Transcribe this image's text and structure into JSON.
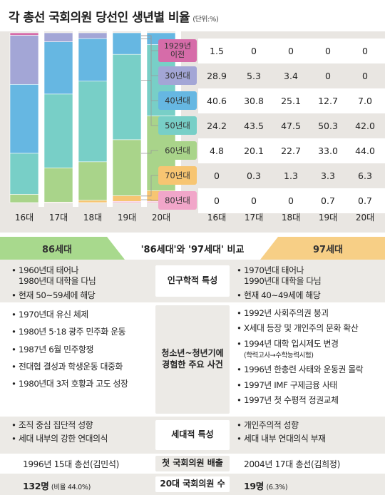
{
  "title": "각 총선 국회의원 당선인 생년별 비율",
  "unit": "(단위:%)",
  "chart_data": {
    "type": "bar",
    "stacked": true,
    "categories": [
      "16대",
      "17대",
      "18대",
      "19대",
      "20대"
    ],
    "series": [
      {
        "name": "1929년 이전",
        "values": [
          1.5,
          0,
          0,
          0,
          0
        ],
        "color": "#d66ca9"
      },
      {
        "name": "30년대",
        "values": [
          28.9,
          5.3,
          3.4,
          0,
          0
        ],
        "color": "#a3a6d6"
      },
      {
        "name": "40년대",
        "values": [
          40.6,
          30.8,
          25.1,
          12.7,
          7.0
        ],
        "color": "#66b7e2"
      },
      {
        "name": "50년대",
        "values": [
          24.2,
          43.5,
          47.5,
          50.3,
          42.0
        ],
        "color": "#78cfc7"
      },
      {
        "name": "60년대",
        "values": [
          4.8,
          20.1,
          22.7,
          33.0,
          44.0
        ],
        "color": "#a9d48a"
      },
      {
        "name": "70년대",
        "values": [
          0,
          0.3,
          1.3,
          3.3,
          6.3
        ],
        "color": "#f7c572"
      },
      {
        "name": "80년대",
        "values": [
          0,
          0,
          0,
          0.7,
          0.7
        ],
        "color": "#f1a6c9"
      }
    ],
    "ylim": [
      0,
      100
    ]
  },
  "table": {
    "rows": [
      {
        "label": "1929년\n이전",
        "values": [
          "1.5",
          "0",
          "0",
          "0",
          "0"
        ]
      },
      {
        "label": "30년대",
        "values": [
          "28.9",
          "5.3",
          "3.4",
          "0",
          "0"
        ]
      },
      {
        "label": "40년대",
        "values": [
          "40.6",
          "30.8",
          "25.1",
          "12.7",
          "7.0"
        ]
      },
      {
        "label": "50년대",
        "values": [
          "24.2",
          "43.5",
          "47.5",
          "50.3",
          "42.0"
        ]
      },
      {
        "label": "60년대",
        "values": [
          "4.8",
          "20.1",
          "22.7",
          "33.0",
          "44.0"
        ]
      },
      {
        "label": "70년대",
        "values": [
          "0",
          "0.3",
          "1.3",
          "3.3",
          "6.3"
        ]
      },
      {
        "label": "80년대",
        "values": [
          "0",
          "0",
          "0",
          "0.7",
          "0.7"
        ]
      }
    ],
    "columns": [
      "16대",
      "17대",
      "18대",
      "19대",
      "20대"
    ]
  },
  "compare": {
    "left_header": "86세대",
    "title": "'86세대'와 '97세대' 비교",
    "right_header": "97세대",
    "left_color": "#a8d98d",
    "right_color": "#f7cf86",
    "rows": [
      {
        "label": "인구학적 특성",
        "left": [
          "1960년대 태어나\n1980년대 대학을 다님",
          "현재 50~59세에 해당"
        ],
        "right": [
          "1970년대 태어나\n1990년대 대학을 다님",
          "현재 40~49세에 해당"
        ]
      },
      {
        "label": "청소년~청년기에\n경험한 주요 사건",
        "left": [
          "1970년대 유신 체제",
          "1980년 5·18 광주 민주화 운동",
          "1987년 6월 민주항쟁",
          "전대협 결성과 학생운동 대중화",
          "1980년대 3저 호황과 고도 성장"
        ],
        "right": [
          "1992년 사회주의권 붕괴",
          "X세대 등장 및 개인주의 문화 확산",
          "1994년 대학 입시제도 변경",
          "1996년 한총련 사태와 운동권 몰락",
          "1997년 IMF 구제금융 사태",
          "1997년 첫 수평적 정권교체"
        ],
        "right_note": "(학력고사→수학능력시험)"
      },
      {
        "label": "세대적 특성",
        "left": [
          "조직 중심 집단적 성향",
          "세대 내부의 강한 연대의식"
        ],
        "right": [
          "개인주의적 성향",
          "세대 내부 연대의식 부재"
        ]
      },
      {
        "label": "첫 국회의원 배출",
        "left_text": "1996년 15대 총선(김민석)",
        "right_text": "2004년 17대 총선(김희정)"
      },
      {
        "label": "20대 국회의원 수",
        "left_count": "132명",
        "left_note": "(비율 44.0%)",
        "right_count": "19명",
        "right_note": "(6.3%)"
      }
    ]
  }
}
